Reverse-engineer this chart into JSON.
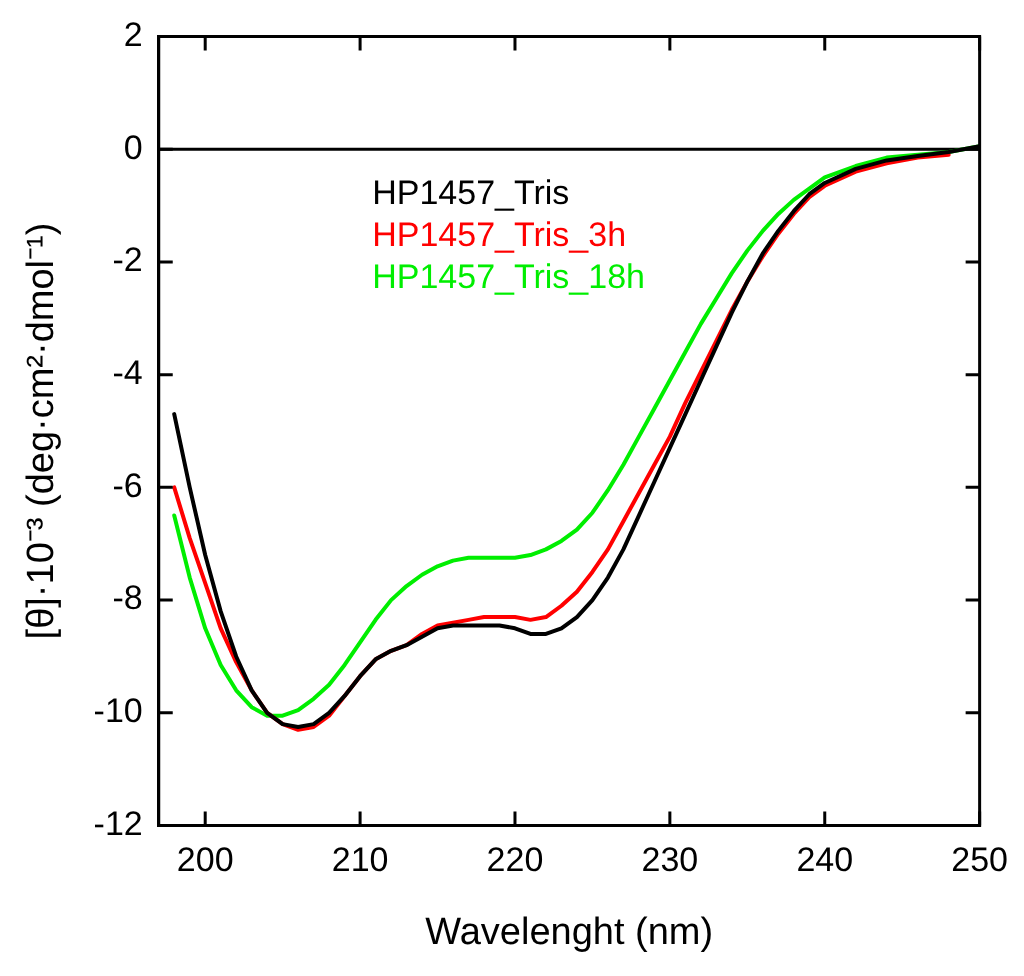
{
  "chart_data": {
    "type": "line",
    "xlabel": "Wavelenght (nm)",
    "ylabel": "[θ]·10⁻³ (deg·cm²·dmol⁻¹)",
    "xlim": [
      197,
      250
    ],
    "xticks": [
      200,
      210,
      220,
      230,
      240,
      250
    ],
    "ylim": [
      -12,
      2
    ],
    "yticks": [
      -12,
      -10,
      -8,
      -6,
      -4,
      -2,
      0,
      2
    ],
    "grid": false,
    "legend": "top left",
    "marker": "none",
    "line_style": "solid",
    "ref_lines": [
      {
        "axis": "y",
        "value": 0,
        "color": "#000000"
      }
    ],
    "x": [
      198,
      199,
      200,
      201,
      202,
      203,
      204,
      205,
      206,
      207,
      208,
      209,
      210,
      211,
      212,
      213,
      214,
      215,
      216,
      217,
      218,
      219,
      220,
      221,
      222,
      223,
      224,
      225,
      226,
      227,
      228,
      229,
      230,
      231,
      232,
      233,
      234,
      235,
      236,
      237,
      238,
      239,
      240,
      242,
      244,
      246,
      248,
      250
    ],
    "series": [
      {
        "name": "HP1457_Tris",
        "color": "#000000",
        "values": [
          -4.7,
          -6.0,
          -7.2,
          -8.2,
          -9.0,
          -9.6,
          -10.0,
          -10.2,
          -10.25,
          -10.2,
          -10.0,
          -9.7,
          -9.35,
          -9.05,
          -8.9,
          -8.8,
          -8.65,
          -8.5,
          -8.45,
          -8.45,
          -8.45,
          -8.45,
          -8.5,
          -8.6,
          -8.6,
          -8.5,
          -8.3,
          -8.0,
          -7.6,
          -7.1,
          -6.5,
          -5.9,
          -5.3,
          -4.7,
          -4.1,
          -3.5,
          -2.9,
          -2.35,
          -1.85,
          -1.45,
          -1.1,
          -0.8,
          -0.6,
          -0.35,
          -0.2,
          -0.12,
          -0.05,
          0.05
        ]
      },
      {
        "name": "HP1457_Tris_3h",
        "color": "#ff0000",
        "values": [
          -6.0,
          -6.9,
          -7.7,
          -8.5,
          -9.1,
          -9.6,
          -10.0,
          -10.2,
          -10.3,
          -10.25,
          -10.05,
          -9.7,
          -9.35,
          -9.05,
          -8.9,
          -8.8,
          -8.6,
          -8.45,
          -8.4,
          -8.35,
          -8.3,
          -8.3,
          -8.3,
          -8.35,
          -8.3,
          -8.1,
          -7.85,
          -7.5,
          -7.1,
          -6.6,
          -6.1,
          -5.6,
          -5.1,
          -4.5,
          -3.95,
          -3.4,
          -2.85,
          -2.35,
          -1.9,
          -1.5,
          -1.15,
          -0.85,
          -0.65,
          -0.4,
          -0.25,
          -0.15,
          -0.1,
          null
        ]
      },
      {
        "name": "HP1457_Tris_18h",
        "color": "#00ee00",
        "values": [
          -6.5,
          -7.6,
          -8.5,
          -9.15,
          -9.6,
          -9.9,
          -10.05,
          -10.05,
          -9.95,
          -9.75,
          -9.5,
          -9.15,
          -8.75,
          -8.35,
          -8.0,
          -7.75,
          -7.55,
          -7.4,
          -7.3,
          -7.25,
          -7.25,
          -7.25,
          -7.25,
          -7.2,
          -7.1,
          -6.95,
          -6.75,
          -6.45,
          -6.05,
          -5.6,
          -5.1,
          -4.6,
          -4.1,
          -3.6,
          -3.1,
          -2.65,
          -2.2,
          -1.8,
          -1.45,
          -1.15,
          -0.9,
          -0.7,
          -0.5,
          -0.3,
          -0.15,
          -0.1,
          -0.05,
          0.05
        ]
      }
    ]
  }
}
